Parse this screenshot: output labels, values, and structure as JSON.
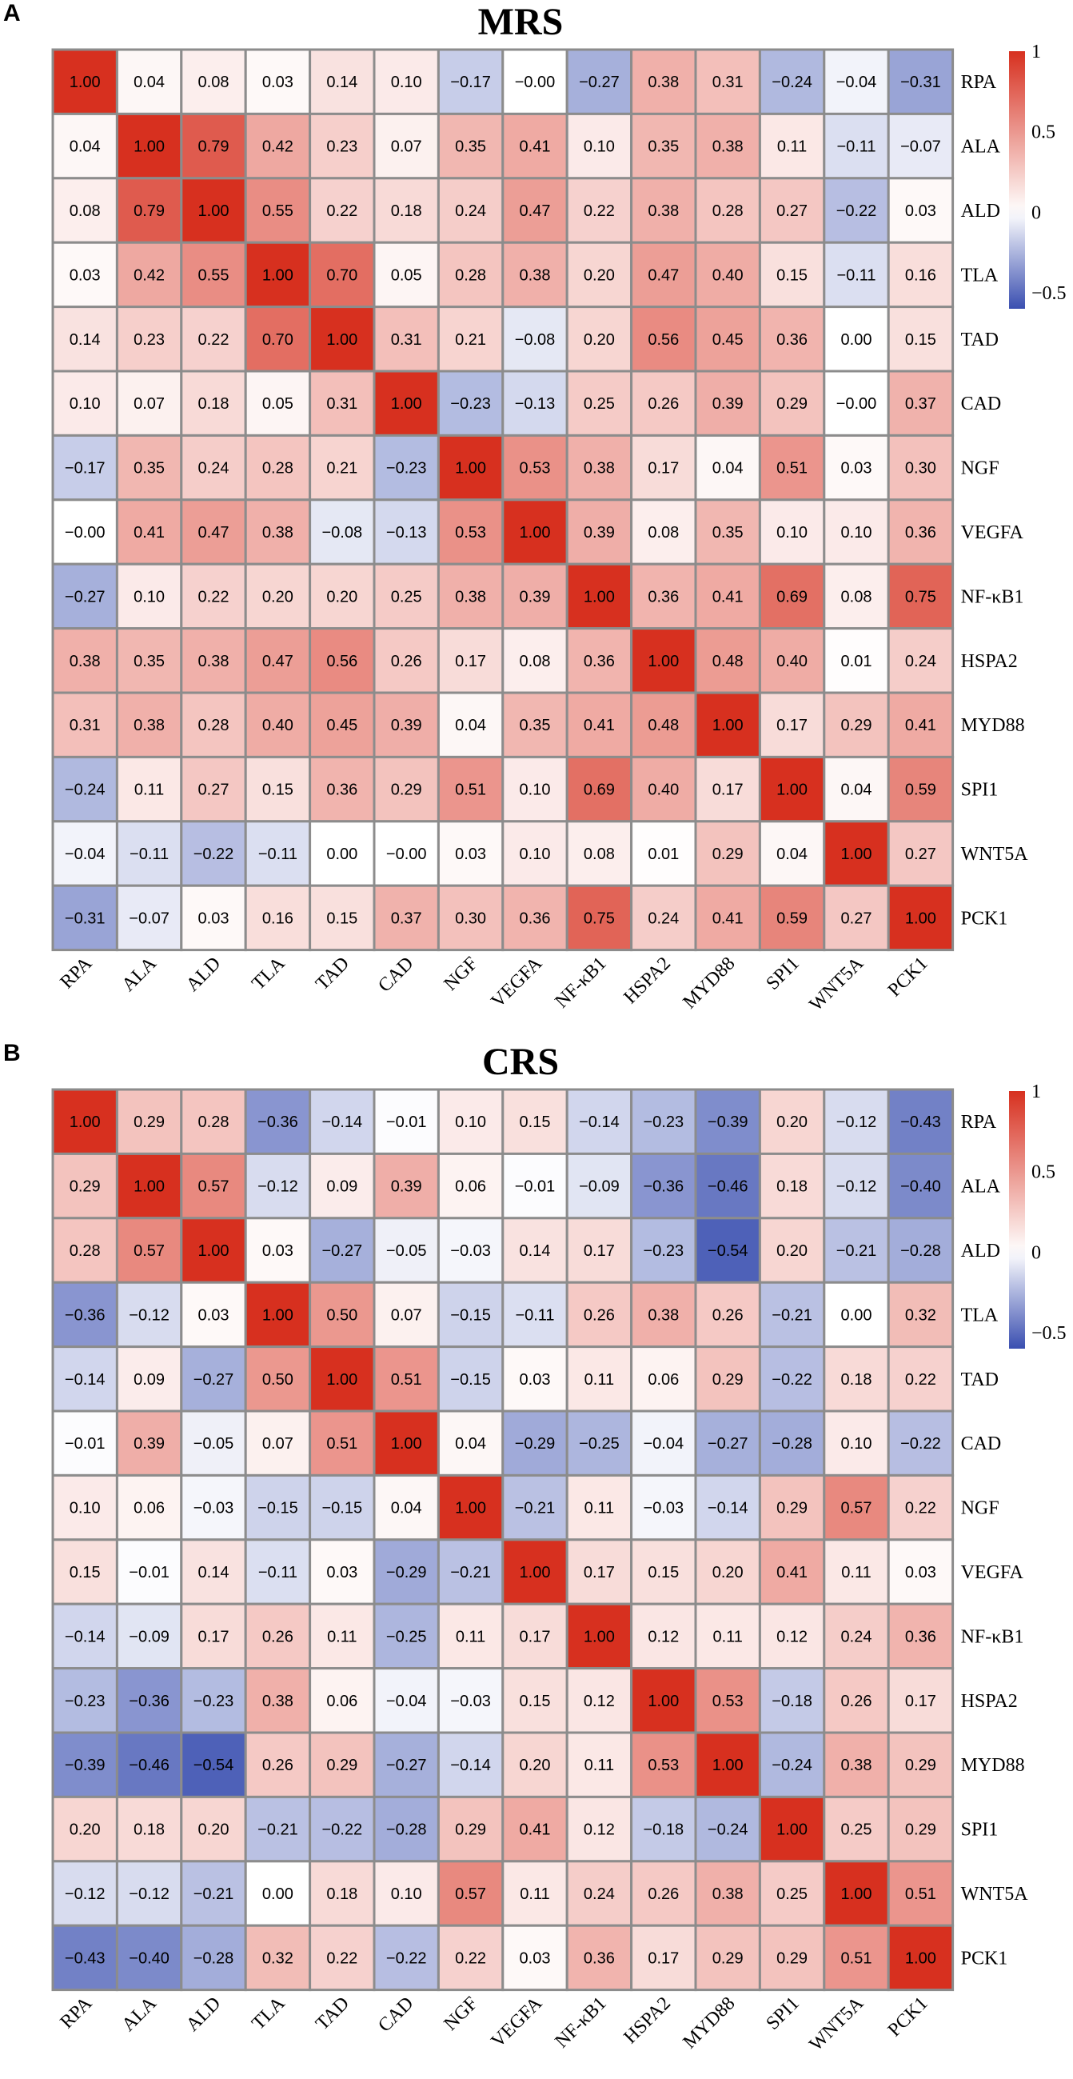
{
  "labels": [
    "RPA",
    "ALA",
    "ALD",
    "TLA",
    "TAD",
    "CAD",
    "NGF",
    "VEGFA",
    "NF-κB1",
    "HSPA2",
    "MYD88",
    "SPI1",
    "WNT5A",
    "PCK1"
  ],
  "colors": {
    "high": "#d7301f",
    "mid": "#ffffff",
    "low": "#3a4fb0",
    "border": "#8c8c8c"
  },
  "chart_data": [
    {
      "type": "heatmap",
      "panel": "A",
      "title": "MRS",
      "categories": [
        "RPA",
        "ALA",
        "ALD",
        "TLA",
        "TAD",
        "CAD",
        "NGF",
        "VEGFA",
        "NF-κB1",
        "HSPA2",
        "MYD88",
        "SPI1",
        "WNT5A",
        "PCK1"
      ],
      "value_labels": [
        [
          "1.00",
          "0.04",
          "0.08",
          "0.03",
          "0.14",
          "0.10",
          "−0.17",
          "−0.00",
          "−0.27",
          "0.38",
          "0.31",
          "−0.24",
          "−0.04",
          "−0.31"
        ],
        [
          "0.04",
          "1.00",
          "0.79",
          "0.42",
          "0.23",
          "0.07",
          "0.35",
          "0.41",
          "0.10",
          "0.35",
          "0.38",
          "0.11",
          "−0.11",
          "−0.07"
        ],
        [
          "0.08",
          "0.79",
          "1.00",
          "0.55",
          "0.22",
          "0.18",
          "0.24",
          "0.47",
          "0.22",
          "0.38",
          "0.28",
          "0.27",
          "−0.22",
          "0.03"
        ],
        [
          "0.03",
          "0.42",
          "0.55",
          "1.00",
          "0.70",
          "0.05",
          "0.28",
          "0.38",
          "0.20",
          "0.47",
          "0.40",
          "0.15",
          "−0.11",
          "0.16"
        ],
        [
          "0.14",
          "0.23",
          "0.22",
          "0.70",
          "1.00",
          "0.31",
          "0.21",
          "−0.08",
          "0.20",
          "0.56",
          "0.45",
          "0.36",
          "0.00",
          "0.15"
        ],
        [
          "0.10",
          "0.07",
          "0.18",
          "0.05",
          "0.31",
          "1.00",
          "−0.23",
          "−0.13",
          "0.25",
          "0.26",
          "0.39",
          "0.29",
          "−0.00",
          "0.37"
        ],
        [
          "−0.17",
          "0.35",
          "0.24",
          "0.28",
          "0.21",
          "−0.23",
          "1.00",
          "0.53",
          "0.38",
          "0.17",
          "0.04",
          "0.51",
          "0.03",
          "0.30"
        ],
        [
          "−0.00",
          "0.41",
          "0.47",
          "0.38",
          "−0.08",
          "−0.13",
          "0.53",
          "1.00",
          "0.39",
          "0.08",
          "0.35",
          "0.10",
          "0.10",
          "0.36"
        ],
        [
          "−0.27",
          "0.10",
          "0.22",
          "0.20",
          "0.20",
          "0.25",
          "0.38",
          "0.39",
          "1.00",
          "0.36",
          "0.41",
          "0.69",
          "0.08",
          "0.75"
        ],
        [
          "0.38",
          "0.35",
          "0.38",
          "0.47",
          "0.56",
          "0.26",
          "0.17",
          "0.08",
          "0.36",
          "1.00",
          "0.48",
          "0.40",
          "0.01",
          "0.24"
        ],
        [
          "0.31",
          "0.38",
          "0.28",
          "0.40",
          "0.45",
          "0.39",
          "0.04",
          "0.35",
          "0.41",
          "0.48",
          "1.00",
          "0.17",
          "0.29",
          "0.41"
        ],
        [
          "−0.24",
          "0.11",
          "0.27",
          "0.15",
          "0.36",
          "0.29",
          "0.51",
          "0.10",
          "0.69",
          "0.40",
          "0.17",
          "1.00",
          "0.04",
          "0.59"
        ],
        [
          "−0.04",
          "−0.11",
          "−0.22",
          "−0.11",
          "0.00",
          "−0.00",
          "0.03",
          "0.10",
          "0.08",
          "0.01",
          "0.29",
          "0.04",
          "1.00",
          "0.27"
        ],
        [
          "−0.31",
          "−0.07",
          "0.03",
          "0.16",
          "0.15",
          "0.37",
          "0.30",
          "0.36",
          "0.75",
          "0.24",
          "0.41",
          "0.59",
          "0.27",
          "1.00"
        ]
      ],
      "legend": {
        "ticks": [
          "1",
          "0.5",
          "0",
          "−0.5"
        ],
        "tick_values": [
          1,
          0.5,
          0,
          -0.5
        ],
        "range": [
          -0.6,
          1.0
        ]
      }
    },
    {
      "type": "heatmap",
      "panel": "B",
      "title": "CRS",
      "categories": [
        "RPA",
        "ALA",
        "ALD",
        "TLA",
        "TAD",
        "CAD",
        "NGF",
        "VEGFA",
        "NF-κB1",
        "HSPA2",
        "MYD88",
        "SPI1",
        "WNT5A",
        "PCK1"
      ],
      "value_labels": [
        [
          "1.00",
          "0.29",
          "0.28",
          "−0.36",
          "−0.14",
          "−0.01",
          "0.10",
          "0.15",
          "−0.14",
          "−0.23",
          "−0.39",
          "0.20",
          "−0.12",
          "−0.43"
        ],
        [
          "0.29",
          "1.00",
          "0.57",
          "−0.12",
          "0.09",
          "0.39",
          "0.06",
          "−0.01",
          "−0.09",
          "−0.36",
          "−0.46",
          "0.18",
          "−0.12",
          "−0.40"
        ],
        [
          "0.28",
          "0.57",
          "1.00",
          "0.03",
          "−0.27",
          "−0.05",
          "−0.03",
          "0.14",
          "0.17",
          "−0.23",
          "−0.54",
          "0.20",
          "−0.21",
          "−0.28"
        ],
        [
          "−0.36",
          "−0.12",
          "0.03",
          "1.00",
          "0.50",
          "0.07",
          "−0.15",
          "−0.11",
          "0.26",
          "0.38",
          "0.26",
          "−0.21",
          "0.00",
          "0.32"
        ],
        [
          "−0.14",
          "0.09",
          "−0.27",
          "0.50",
          "1.00",
          "0.51",
          "−0.15",
          "0.03",
          "0.11",
          "0.06",
          "0.29",
          "−0.22",
          "0.18",
          "0.22"
        ],
        [
          "−0.01",
          "0.39",
          "−0.05",
          "0.07",
          "0.51",
          "1.00",
          "0.04",
          "−0.29",
          "−0.25",
          "−0.04",
          "−0.27",
          "−0.28",
          "0.10",
          "−0.22"
        ],
        [
          "0.10",
          "0.06",
          "−0.03",
          "−0.15",
          "−0.15",
          "0.04",
          "1.00",
          "−0.21",
          "0.11",
          "−0.03",
          "−0.14",
          "0.29",
          "0.57",
          "0.22"
        ],
        [
          "0.15",
          "−0.01",
          "0.14",
          "−0.11",
          "0.03",
          "−0.29",
          "−0.21",
          "1.00",
          "0.17",
          "0.15",
          "0.20",
          "0.41",
          "0.11",
          "0.03"
        ],
        [
          "−0.14",
          "−0.09",
          "0.17",
          "0.26",
          "0.11",
          "−0.25",
          "0.11",
          "0.17",
          "1.00",
          "0.12",
          "0.11",
          "0.12",
          "0.24",
          "0.36"
        ],
        [
          "−0.23",
          "−0.36",
          "−0.23",
          "0.38",
          "0.06",
          "−0.04",
          "−0.03",
          "0.15",
          "0.12",
          "1.00",
          "0.53",
          "−0.18",
          "0.26",
          "0.17"
        ],
        [
          "−0.39",
          "−0.46",
          "−0.54",
          "0.26",
          "0.29",
          "−0.27",
          "−0.14",
          "0.20",
          "0.11",
          "0.53",
          "1.00",
          "−0.24",
          "0.38",
          "0.29"
        ],
        [
          "0.20",
          "0.18",
          "0.20",
          "−0.21",
          "−0.22",
          "−0.28",
          "0.29",
          "0.41",
          "0.12",
          "−0.18",
          "−0.24",
          "1.00",
          "0.25",
          "0.29"
        ],
        [
          "−0.12",
          "−0.12",
          "−0.21",
          "0.00",
          "0.18",
          "0.10",
          "0.57",
          "0.11",
          "0.24",
          "0.26",
          "0.38",
          "0.25",
          "1.00",
          "0.51"
        ],
        [
          "−0.43",
          "−0.40",
          "−0.28",
          "0.32",
          "0.22",
          "−0.22",
          "0.22",
          "0.03",
          "0.36",
          "0.17",
          "0.29",
          "0.29",
          "0.51",
          "1.00"
        ]
      ],
      "legend": {
        "ticks": [
          "1",
          "0.5",
          "0",
          "−0.5"
        ],
        "tick_values": [
          1,
          0.5,
          0,
          -0.5
        ],
        "range": [
          -0.6,
          1.0
        ]
      }
    }
  ]
}
